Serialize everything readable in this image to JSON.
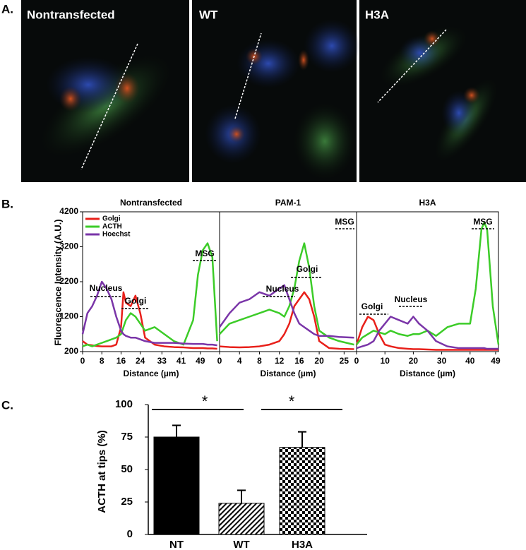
{
  "panels": {
    "a": "A.",
    "b": "B.",
    "c": "C."
  },
  "images": [
    {
      "label": "Nontransfected"
    },
    {
      "label": "WT"
    },
    {
      "label": "H3A"
    }
  ],
  "chart_data": [
    {
      "type": "line",
      "title": "Nontransfected",
      "xlabel": "Distance (µm)",
      "ylabel": "Fluorescence Intensity (A.U.)",
      "x": [
        0,
        2,
        4,
        6,
        8,
        10,
        12,
        14,
        16,
        17,
        18,
        20,
        22,
        24,
        26,
        30,
        34,
        38,
        42,
        46,
        48,
        50,
        52,
        54,
        56
      ],
      "xlim": [
        0,
        57
      ],
      "xticks": [
        0,
        8,
        16,
        24,
        33,
        41,
        49
      ],
      "ylim": [
        200,
        4200
      ],
      "yticks": [
        200,
        1200,
        2200,
        3200,
        4200
      ],
      "legend": "upper left",
      "series": [
        {
          "name": "Golgi",
          "color": "#e8201a",
          "values": [
            500,
            400,
            380,
            360,
            350,
            350,
            350,
            400,
            900,
            1900,
            1600,
            1500,
            1800,
            1300,
            600,
            400,
            350,
            330,
            320,
            300,
            300,
            300,
            290,
            290,
            280
          ]
        },
        {
          "name": "ACTH",
          "color": "#3ccc28",
          "values": [
            350,
            400,
            350,
            400,
            450,
            500,
            550,
            600,
            700,
            900,
            1100,
            1300,
            1200,
            1000,
            800,
            900,
            700,
            500,
            400,
            1100,
            2400,
            3100,
            3300,
            2900,
            500
          ]
        },
        {
          "name": "Hoechst",
          "color": "#7a35a8",
          "values": [
            700,
            1300,
            1500,
            1800,
            2200,
            2000,
            1700,
            1200,
            800,
            700,
            650,
            600,
            600,
            550,
            500,
            450,
            450,
            450,
            430,
            420,
            420,
            420,
            400,
            400,
            380
          ]
        }
      ],
      "annotations": [
        "Nucleus",
        "Golgi",
        "MSG"
      ]
    },
    {
      "type": "line",
      "title": "PAM-1",
      "xlabel": "Distance (µm)",
      "x": [
        0,
        2,
        4,
        6,
        8,
        10,
        12,
        13,
        14,
        15,
        16,
        17,
        18,
        19,
        20,
        22,
        24,
        27
      ],
      "xlim": [
        0,
        27.5
      ],
      "xticks": [
        0,
        4,
        8,
        12,
        16,
        20,
        25
      ],
      "ylim": [
        200,
        4200
      ],
      "series": [
        {
          "color": "#e8201a",
          "values": [
            350,
            330,
            320,
            330,
            350,
            400,
            500,
            700,
            1000,
            1500,
            1700,
            1900,
            1700,
            1200,
            500,
            300,
            280,
            270
          ]
        },
        {
          "color": "#3ccc28",
          "values": [
            700,
            1000,
            1100,
            1200,
            1300,
            1400,
            1300,
            1200,
            1500,
            2000,
            2800,
            3300,
            2600,
            1500,
            800,
            600,
            500,
            400
          ]
        },
        {
          "color": "#7a35a8",
          "values": [
            900,
            1300,
            1600,
            1700,
            1900,
            1800,
            2000,
            2100,
            1700,
            1300,
            1000,
            900,
            800,
            700,
            650,
            650,
            620,
            600
          ]
        }
      ],
      "annotations": [
        "Nucleus",
        "Golgi",
        "MSG"
      ]
    },
    {
      "type": "line",
      "title": "H3A",
      "xlabel": "Distance (µm)",
      "x": [
        0,
        2,
        4,
        6,
        8,
        10,
        12,
        15,
        18,
        20,
        22,
        25,
        28,
        32,
        36,
        40,
        42,
        44,
        45,
        46,
        48,
        50
      ],
      "xlim": [
        0,
        50
      ],
      "xticks": [
        0,
        10,
        20,
        30,
        40,
        49
      ],
      "ylim": [
        200,
        4200
      ],
      "series": [
        {
          "color": "#e8201a",
          "values": [
            400,
            900,
            1200,
            1100,
            700,
            400,
            350,
            300,
            280,
            270,
            270,
            260,
            250,
            250,
            250,
            250,
            250,
            250,
            250,
            250,
            250,
            250
          ]
        },
        {
          "color": "#3ccc28",
          "values": [
            400,
            600,
            700,
            800,
            750,
            700,
            800,
            700,
            650,
            700,
            700,
            800,
            650,
            900,
            1000,
            1000,
            2000,
            3700,
            3900,
            3700,
            1500,
            400
          ]
        },
        {
          "color": "#7a35a8",
          "values": [
            300,
            350,
            400,
            500,
            800,
            1000,
            1200,
            1100,
            1000,
            1200,
            1000,
            800,
            500,
            350,
            300,
            300,
            300,
            300,
            300,
            280,
            280,
            280
          ]
        }
      ],
      "annotations": [
        "Golgi",
        "Nucleus",
        "MSG"
      ]
    },
    {
      "type": "bar",
      "ylabel": "ACTH at tips (%)",
      "categories": [
        "NT",
        "WT",
        "H3A"
      ],
      "values": [
        75,
        24,
        67
      ],
      "errors": [
        9,
        10,
        12
      ],
      "fills": [
        "solid",
        "stripes",
        "checker"
      ],
      "color": "#000000",
      "ylim": [
        0,
        100
      ],
      "yticks": [
        0,
        25,
        50,
        75,
        100
      ],
      "annotations": [
        "*",
        "*"
      ]
    }
  ]
}
